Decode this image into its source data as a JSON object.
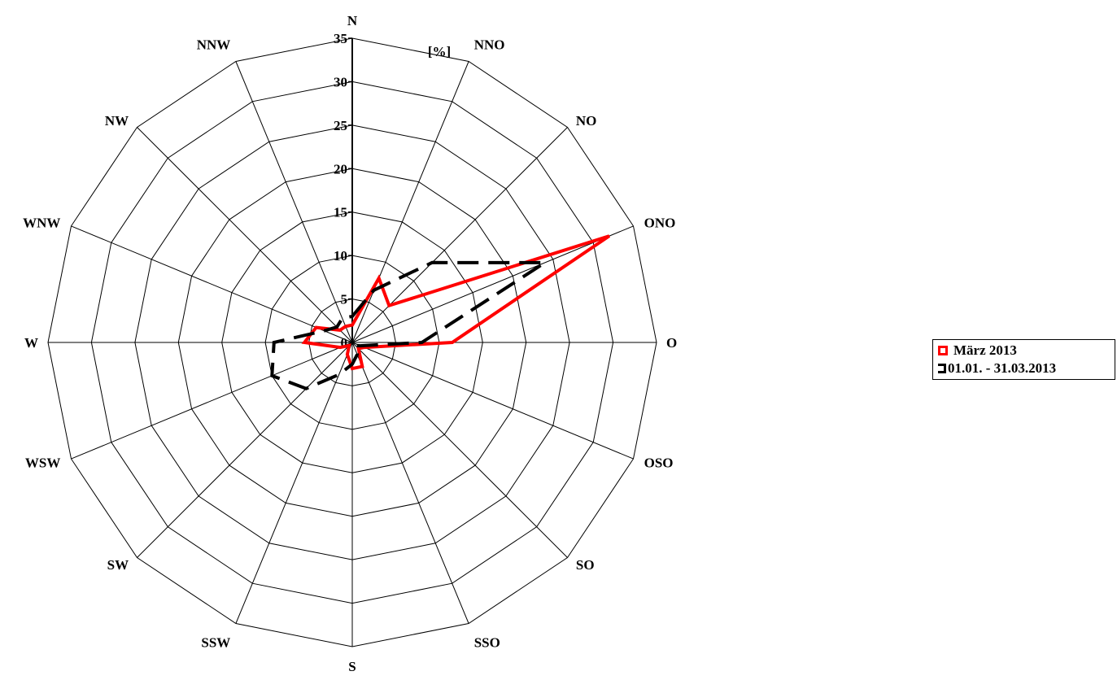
{
  "chart_data": {
    "type": "radar",
    "unit_label": "[%]",
    "directions": [
      "N",
      "NNO",
      "NO",
      "ONO",
      "O",
      "OSO",
      "SO",
      "SSO",
      "S",
      "SSW",
      "SW",
      "WSW",
      "W",
      "WNW",
      "NW",
      "NNW"
    ],
    "radial_ticks": [
      "0",
      "5",
      "10",
      "15",
      "20",
      "25",
      "30",
      "35"
    ],
    "rmax": 35,
    "rings": 7,
    "series": [
      {
        "name": "März 2013",
        "color": "#ff0000",
        "style": "solid",
        "values": [
          2,
          8,
          6,
          32,
          11.5,
          1.5,
          1,
          3,
          3,
          1.5,
          0.5,
          1.5,
          5.5,
          4.5,
          2,
          2
        ]
      },
      {
        "name": "01.01. - 31.03.2013",
        "color": "#000000",
        "style": "dashed",
        "values": [
          3,
          6.5,
          13,
          24,
          8,
          1,
          0.5,
          1.5,
          2.5,
          4,
          7.5,
          10,
          9,
          3.5,
          2.5,
          3
        ]
      }
    ],
    "legend": [
      "März 2013",
      "01.01. - 31.03.2013"
    ],
    "legend_position": "right",
    "grid": true
  }
}
